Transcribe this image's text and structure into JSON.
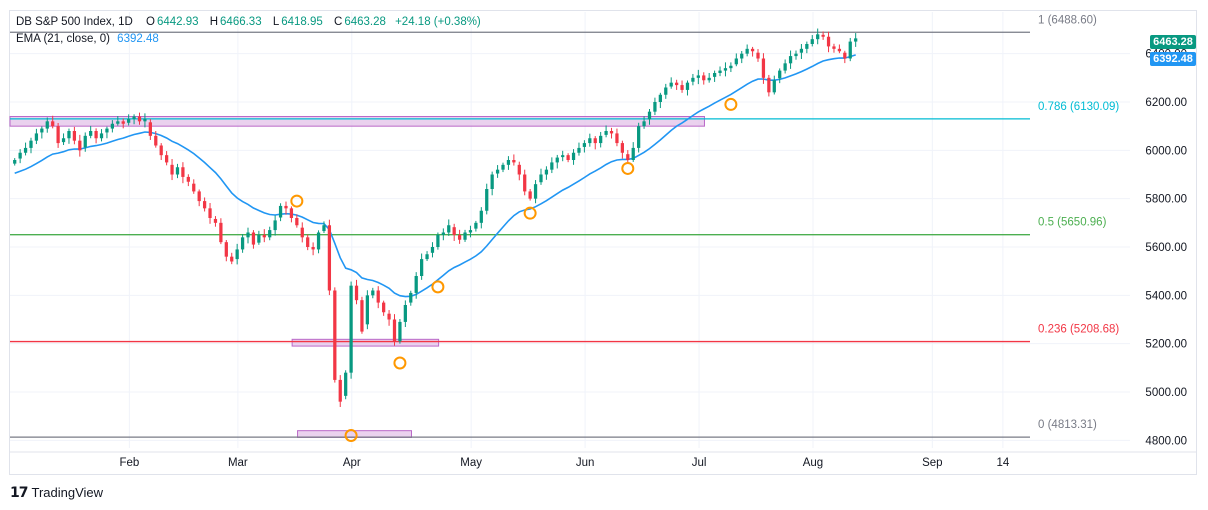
{
  "legend": {
    "symbol": "DB S&P 500 Index, 1D",
    "open_label": "O",
    "open": "6442.93",
    "high_label": "H",
    "high": "6466.33",
    "low_label": "L",
    "low": "6418.95",
    "close_label": "C",
    "close": "6463.28",
    "change": "+24.18 (+0.38%)",
    "ema_label": "EMA (21, close, 0)",
    "ema_value": "6392.48"
  },
  "price_tags": {
    "last": "6463.28",
    "ema": "6392.48"
  },
  "colors": {
    "up": "#089981",
    "down": "#f23645",
    "ema": "#2196f3",
    "fib_1": "#787b86",
    "fib_0786": "#00bcd4",
    "fib_05": "#4caf50",
    "fib_0236": "#f23645",
    "fib_0": "#787b86",
    "zone_fill": "#e1bee7",
    "zone_stroke": "#ba68c8",
    "marker": "#ff9800",
    "grid": "#f0f3fa",
    "axis_text": "#131722"
  },
  "fib_levels": [
    {
      "ratio": "1",
      "value": 6488.6,
      "label": "1 (6488.60)",
      "color_key": "fib_1"
    },
    {
      "ratio": "0.786",
      "value": 6130.09,
      "label": "0.786 (6130.09)",
      "color_key": "fib_0786"
    },
    {
      "ratio": "0.5",
      "value": 5650.96,
      "label": "0.5 (5650.96)",
      "color_key": "fib_05"
    },
    {
      "ratio": "0.236",
      "value": 5208.68,
      "label": "0.236 (5208.68)",
      "color_key": "fib_0236"
    },
    {
      "ratio": "0",
      "value": 4813.31,
      "label": "0 (4813.31)",
      "color_key": "fib_0"
    }
  ],
  "branding": {
    "logo_text": "TradingView"
  },
  "chart_data": {
    "type": "candlestick",
    "title": "DB S&P 500 Index, 1D",
    "ylim": [
      4760,
      6560
    ],
    "y_ticks": [
      4800,
      5000,
      5200,
      5400,
      5600,
      5800,
      6000,
      6200,
      6400
    ],
    "y_tick_labels": [
      "4800.00",
      "5000.00",
      "5200.00",
      "5400.00",
      "5600.00",
      "5800.00",
      "6000.00",
      "6200.00",
      "6400.00"
    ],
    "x_ticks": [
      {
        "label": "Feb",
        "day": 22
      },
      {
        "label": "Mar",
        "day": 42
      },
      {
        "label": "Apr",
        "day": 63
      },
      {
        "label": "May",
        "day": 85
      },
      {
        "label": "Jun",
        "day": 106
      },
      {
        "label": "Jul",
        "day": 127
      },
      {
        "label": "Aug",
        "day": 148
      },
      {
        "label": "Sep",
        "day": 170
      },
      {
        "label": "14",
        "day": 183
      }
    ],
    "x_range": [
      0,
      188
    ],
    "close_series": [
      5960,
      5990,
      6010,
      6040,
      6070,
      6090,
      6120,
      6100,
      6030,
      6050,
      6080,
      6040,
      6000,
      6060,
      6080,
      6050,
      6070,
      6090,
      6110,
      6120,
      6110,
      6130,
      6140,
      6120,
      6130,
      6060,
      6020,
      5980,
      5950,
      5900,
      5930,
      5890,
      5870,
      5830,
      5790,
      5760,
      5720,
      5700,
      5620,
      5560,
      5540,
      5590,
      5640,
      5660,
      5610,
      5650,
      5640,
      5670,
      5710,
      5770,
      5760,
      5720,
      5690,
      5640,
      5600,
      5590,
      5660,
      5690,
      5420,
      5050,
      4960,
      5080,
      5440,
      5380,
      5250,
      5400,
      5420,
      5370,
      5330,
      5300,
      5210,
      5290,
      5360,
      5410,
      5480,
      5550,
      5570,
      5600,
      5650,
      5660,
      5690,
      5650,
      5630,
      5660,
      5670,
      5700,
      5750,
      5840,
      5900,
      5920,
      5940,
      5960,
      5950,
      5900,
      5830,
      5800,
      5860,
      5900,
      5920,
      5950,
      5970,
      5980,
      5960,
      5990,
      6010,
      6030,
      6050,
      6030,
      6060,
      6080,
      6070,
      6030,
      5990,
      5960,
      6010,
      6100,
      6120,
      6160,
      6200,
      6230,
      6260,
      6280,
      6270,
      6250,
      6280,
      6300,
      6310,
      6290,
      6300,
      6320,
      6330,
      6340,
      6350,
      6380,
      6400,
      6420,
      6410,
      6380,
      6300,
      6240,
      6290,
      6330,
      6360,
      6390,
      6400,
      6420,
      6440,
      6460,
      6480,
      6470,
      6430,
      6420,
      6410,
      6380,
      6450,
      6463.28
    ],
    "ema_period": 21,
    "ema_last": 6392.48,
    "zones": [
      {
        "y_top": 6140,
        "y_bottom": 6100,
        "day_start": 0,
        "day_end": 128
      },
      {
        "y_top": 5218,
        "y_bottom": 5190,
        "day_start": 52,
        "day_end": 79
      },
      {
        "y_top": 4840,
        "y_bottom": 4812,
        "day_start": 53,
        "day_end": 74
      }
    ],
    "markers": [
      {
        "day": 52,
        "value": 5790
      },
      {
        "day": 62,
        "value": 4820
      },
      {
        "day": 71,
        "value": 5120
      },
      {
        "day": 78,
        "value": 5435
      },
      {
        "day": 95,
        "value": 5740
      },
      {
        "day": 113,
        "value": 5925
      },
      {
        "day": 132,
        "value": 6190
      }
    ]
  }
}
